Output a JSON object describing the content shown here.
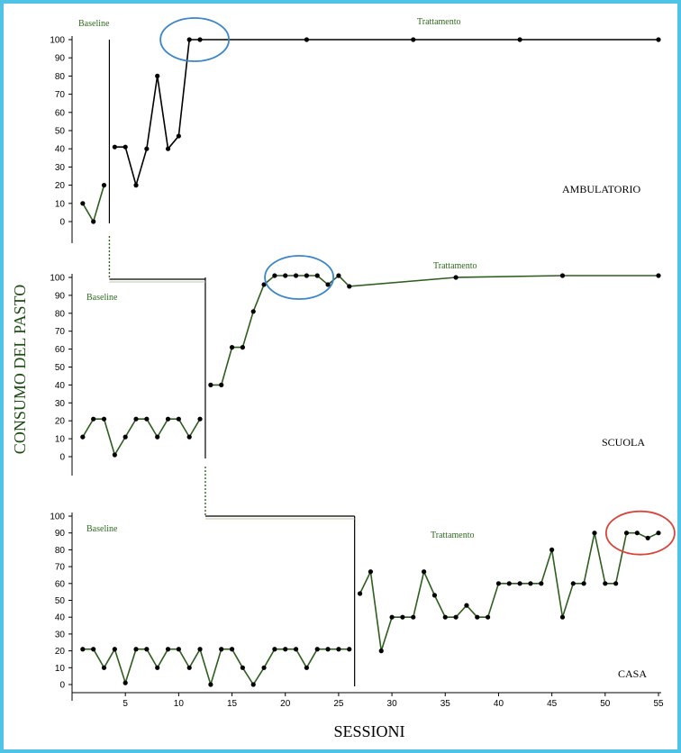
{
  "chart_data": {
    "type": "line",
    "ylabel": "CONSUMO DEL PASTO",
    "xlabel": "SESSIONI",
    "x_ticks": [
      5,
      10,
      15,
      20,
      25,
      30,
      35,
      40,
      45,
      50,
      55
    ],
    "y_ticks": [
      0,
      10,
      20,
      30,
      40,
      50,
      60,
      70,
      80,
      90,
      100
    ],
    "xlim": [
      0,
      55
    ],
    "ylim": [
      0,
      100
    ],
    "series_color": "#2e5e1e",
    "highlight_blue": "#3a86c8",
    "highlight_red": "#d9453a",
    "panels": [
      {
        "setting": "AMBULATORIO",
        "baseline_label": "Baseline",
        "treatment_label": "Trattamento",
        "phase_change_x": 3.5,
        "baseline": {
          "x": [
            1,
            2,
            3
          ],
          "y": [
            10,
            0,
            20
          ]
        },
        "treatment": {
          "x": [
            4,
            5,
            6,
            7,
            8,
            9,
            10,
            11,
            12,
            22,
            32,
            42,
            55
          ],
          "y": [
            41,
            41,
            20,
            40,
            80,
            40,
            47,
            100,
            100,
            100,
            100,
            100,
            100
          ]
        },
        "highlight": {
          "x_center": 11.5,
          "y_center": 100,
          "color": "blue"
        }
      },
      {
        "setting": "SCUOLA",
        "baseline_label": "Baseline",
        "treatment_label": "Trattamento",
        "phase_change_x": 12.5,
        "baseline": {
          "x": [
            1,
            2,
            3,
            4,
            5,
            6,
            7,
            8,
            9,
            10,
            11,
            12
          ],
          "y": [
            11,
            21,
            21,
            1,
            11,
            21,
            21,
            11,
            21,
            21,
            11,
            21
          ]
        },
        "treatment": {
          "x": [
            13,
            14,
            15,
            16,
            17,
            18,
            19,
            20,
            21,
            22,
            23,
            24,
            25,
            26,
            36,
            46,
            55
          ],
          "y": [
            40,
            40,
            61,
            61,
            81,
            96,
            101,
            101,
            101,
            101,
            101,
            96,
            101,
            95,
            100,
            101,
            101
          ]
        },
        "highlight": {
          "x_center": 21.3,
          "y_center": 100,
          "color": "blue"
        }
      },
      {
        "setting": "CASA",
        "baseline_label": "Baseline",
        "treatment_label": "Trattamento",
        "phase_change_x": 26.5,
        "baseline": {
          "x": [
            1,
            2,
            3,
            4,
            5,
            6,
            7,
            8,
            9,
            10,
            11,
            12,
            13,
            14,
            15,
            16,
            17,
            18,
            19,
            20,
            21,
            22,
            23,
            24,
            25,
            26
          ],
          "y": [
            21,
            21,
            10,
            21,
            1,
            21,
            21,
            10,
            21,
            21,
            10,
            21,
            0,
            21,
            21,
            10,
            0,
            10,
            21,
            21,
            21,
            10,
            21,
            21,
            21,
            21
          ]
        },
        "treatment": {
          "x": [
            27,
            28,
            29,
            30,
            31,
            32,
            33,
            34,
            35,
            36,
            37,
            38,
            39,
            40,
            41,
            42,
            43,
            44,
            45,
            46,
            47,
            48,
            49,
            50,
            51,
            52,
            53,
            54,
            55
          ],
          "y": [
            54,
            67,
            20,
            40,
            40,
            40,
            67,
            53,
            40,
            40,
            47,
            40,
            40,
            60,
            60,
            60,
            60,
            60,
            80,
            40,
            60,
            60,
            90,
            60,
            60,
            90,
            90,
            87,
            90
          ]
        },
        "highlight": {
          "x_center": 53.3,
          "y_center": 90,
          "color": "red"
        }
      }
    ]
  }
}
